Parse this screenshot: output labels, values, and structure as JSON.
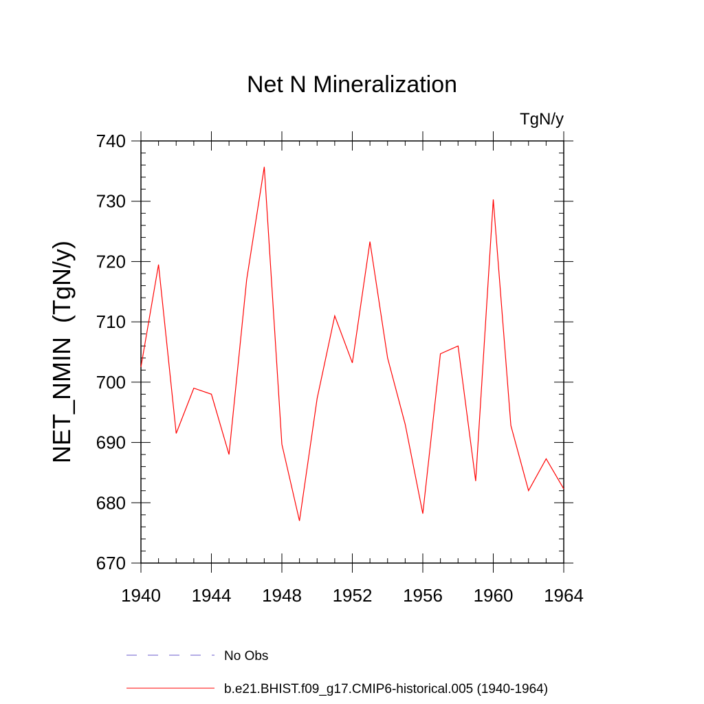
{
  "chart_data": {
    "type": "line",
    "title": "Net N Mineralization",
    "units_label": "TgN/y",
    "ylabel": "NET_NMIN  (TgN/y)",
    "xlabel": "",
    "xlim": [
      1940,
      1964
    ],
    "ylim": [
      670,
      740
    ],
    "xticks": [
      1940,
      1944,
      1948,
      1952,
      1956,
      1960,
      1964
    ],
    "yticks": [
      670,
      680,
      690,
      700,
      710,
      720,
      730,
      740
    ],
    "grid": false,
    "legend_position": "bottom",
    "series": [
      {
        "name": "b.e21.BHIST.f09_g17.CMIP6-historical.005 (1940-1964)",
        "color": "#ff0000",
        "style": "solid",
        "x": [
          1940,
          1941,
          1942,
          1943,
          1944,
          1945,
          1946,
          1947,
          1948,
          1949,
          1950,
          1951,
          1952,
          1953,
          1954,
          1955,
          1956,
          1957,
          1958,
          1959,
          1960,
          1961,
          1962,
          1963,
          1964
        ],
        "values": [
          702.5,
          719.5,
          691.5,
          699.0,
          698.0,
          688.0,
          717.0,
          735.7,
          689.7,
          677.0,
          697.3,
          711.0,
          703.2,
          723.3,
          704.0,
          693.0,
          678.2,
          704.7,
          706.0,
          683.6,
          730.3,
          692.8,
          682.0,
          687.3,
          682.3
        ]
      }
    ],
    "legend": [
      {
        "label": "No Obs",
        "color": "#6a5acd",
        "style": "dashed"
      },
      {
        "label": "b.e21.BHIST.f09_g17.CMIP6-historical.005 (1940-1964)",
        "color": "#ff0000",
        "style": "solid"
      }
    ]
  }
}
